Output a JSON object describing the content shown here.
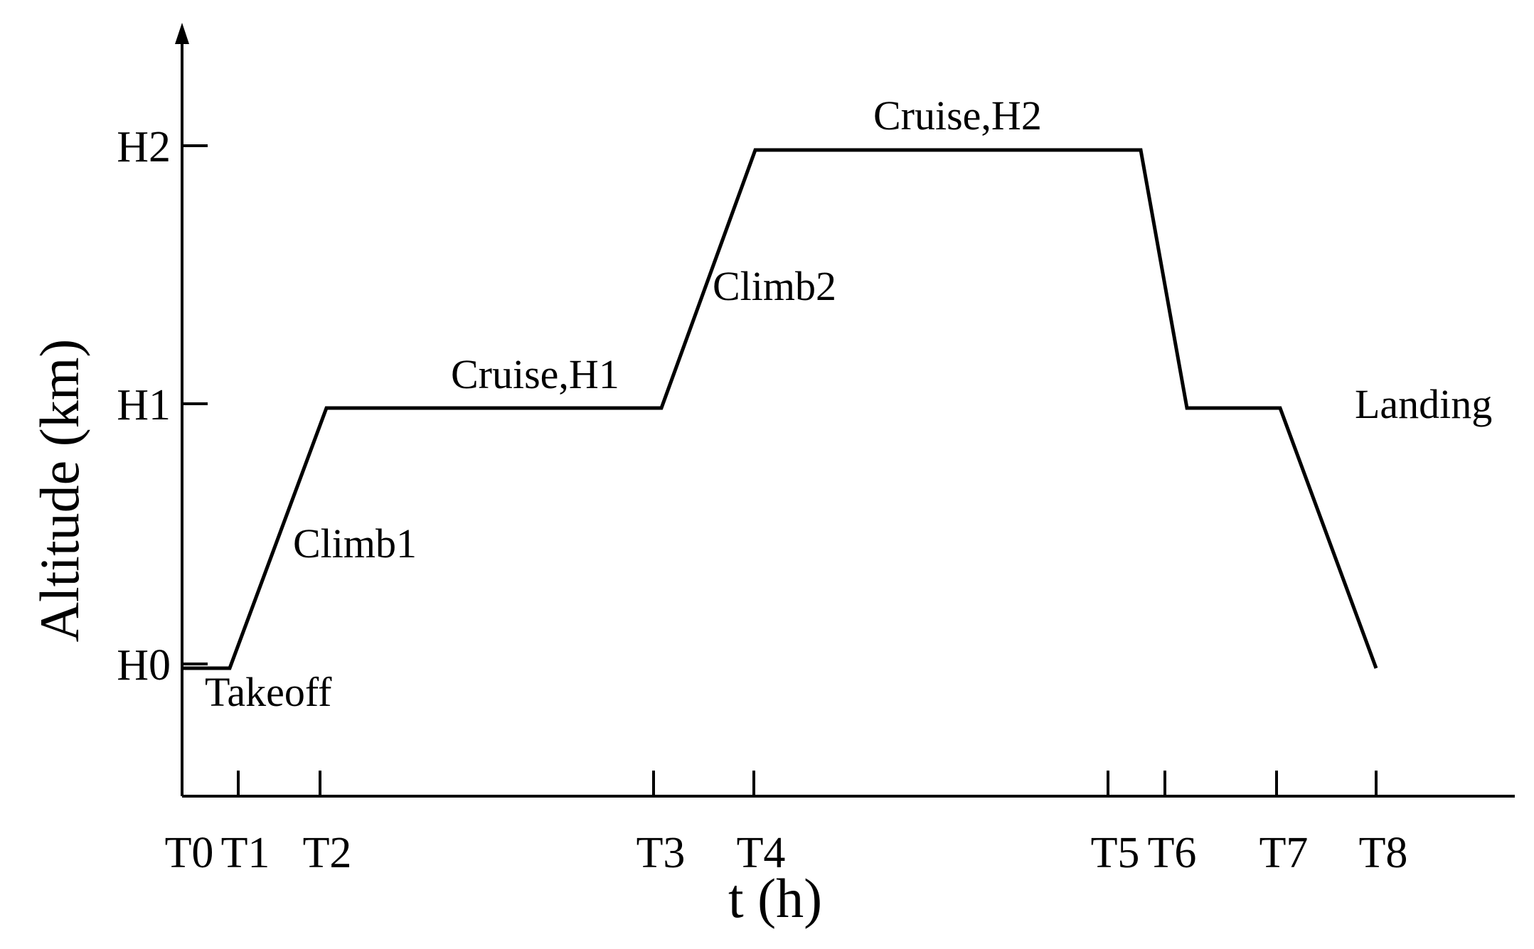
{
  "chart_data": {
    "type": "line",
    "title": "",
    "xlabel": "t (h)",
    "ylabel": "Altitude (km)",
    "x_ticks": [
      "T0",
      "T1",
      "T2",
      "T3",
      "T4",
      "T5",
      "T6",
      "T7",
      "T8"
    ],
    "y_ticks": [
      "H0",
      "H1",
      "H2"
    ],
    "series": [
      {
        "points": [
          {
            "x": "T0",
            "y": "H0"
          },
          {
            "x": "T1",
            "y": "H0"
          },
          {
            "x": "T2",
            "y": "H1"
          },
          {
            "x": "T3",
            "y": "H1"
          },
          {
            "x": "T4",
            "y": "H2"
          },
          {
            "x": "T5",
            "y": "H2"
          },
          {
            "x": "T6",
            "y": "H1"
          },
          {
            "x": "T7",
            "y": "H1"
          },
          {
            "x": "T8",
            "y": "H0"
          }
        ]
      }
    ],
    "annotations": [
      "Takeoff",
      "Climb1",
      "Cruise,H1",
      "Climb2",
      "Cruise,H2",
      "Landing"
    ],
    "grid": false,
    "legend": "none",
    "line_color": "#000000"
  }
}
